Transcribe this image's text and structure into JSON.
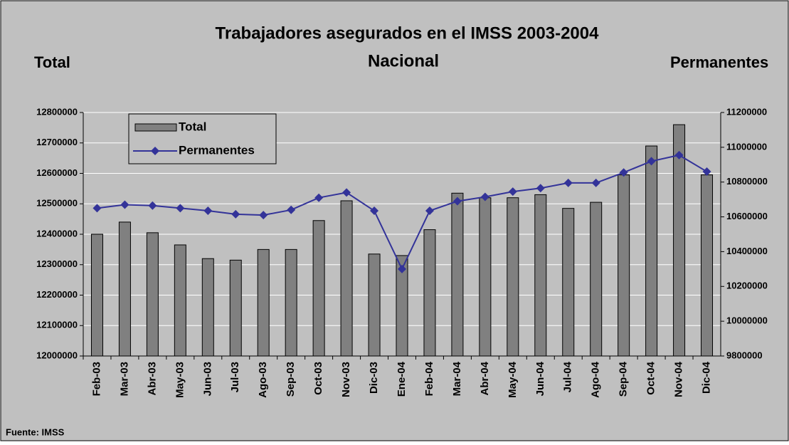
{
  "chart_data": {
    "type": "bar_line",
    "title": "Trabajadores asegurados en el IMSS 2003-2004",
    "subtitle": "Nacional",
    "y_label": "Total",
    "y2_label": "Permanentes",
    "source": "Fuente: IMSS",
    "categories": [
      "Feb-03",
      "Mar-03",
      "Abr-03",
      "May-03",
      "Jun-03",
      "Jul-03",
      "Ago-03",
      "Sep-03",
      "Oct-03",
      "Nov-03",
      "Dic-03",
      "Ene-04",
      "Feb-04",
      "Mar-04",
      "Abr-04",
      "May-04",
      "Jun-04",
      "Jul-04",
      "Ago-04",
      "Sep-04",
      "Oct-04",
      "Nov-04",
      "Dic-04"
    ],
    "series": [
      {
        "name": "Total",
        "type": "bar",
        "color": "#808080",
        "values": [
          12400000,
          12440000,
          12405000,
          12365000,
          12320000,
          12315000,
          12350000,
          12350000,
          12445000,
          12510000,
          12335000,
          12330000,
          12415000,
          12535000,
          12520000,
          12520000,
          12530000,
          12485000,
          12505000,
          12595000,
          12690000,
          12760000,
          12595000
        ]
      },
      {
        "name": "Permanentes",
        "type": "line",
        "axis": "y2",
        "color": "#333399",
        "values": [
          10650000,
          10670000,
          10665000,
          10650000,
          10635000,
          10615000,
          10610000,
          10640000,
          10710000,
          10740000,
          10635000,
          10300000,
          10635000,
          10690000,
          10715000,
          10745000,
          10765000,
          10795000,
          10795000,
          10855000,
          10920000,
          10955000,
          10860000
        ]
      }
    ],
    "ylim": [
      12000000,
      12800000
    ],
    "yticks": [
      12000000,
      12100000,
      12200000,
      12300000,
      12400000,
      12500000,
      12600000,
      12700000,
      12800000
    ],
    "y2lim": [
      9800000,
      11200000
    ],
    "y2ticks": [
      9800000,
      10000000,
      10200000,
      10400000,
      10600000,
      10800000,
      11000000,
      11200000
    ],
    "grid": true,
    "legend": "upper left"
  }
}
